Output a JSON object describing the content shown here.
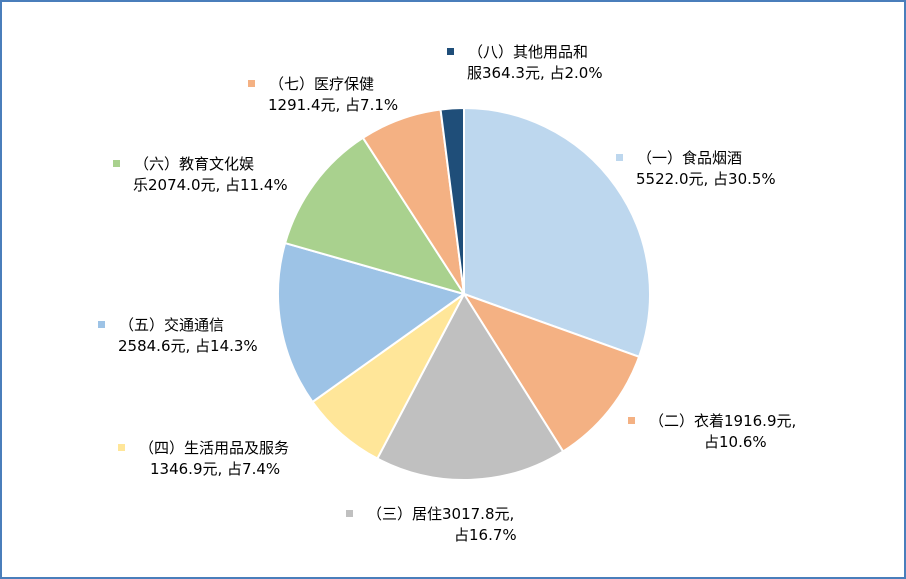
{
  "chart_data": {
    "type": "pie",
    "title": "",
    "slices": [
      {
        "label_line1": "（一）食品烟酒",
        "label_line2": "5522.0元, 占30.5%",
        "value": 5522.0,
        "percent": 30.5,
        "color": "#bdd7ee"
      },
      {
        "label_line1": "（二）衣着1916.9元,",
        "label_line2": "占10.6%",
        "value": 1916.9,
        "percent": 10.6,
        "color": "#f4b183"
      },
      {
        "label_line1": "（三）居住3017.8元,",
        "label_line2": "占16.7%",
        "value": 3017.8,
        "percent": 16.7,
        "color": "#c0c0c0"
      },
      {
        "label_line1": "（四）生活用品及服务",
        "label_line2": "1346.9元, 占7.4%",
        "value": 1346.9,
        "percent": 7.4,
        "color": "#ffe699"
      },
      {
        "label_line1": "（五）交通通信",
        "label_line2": "2584.6元, 占14.3%",
        "value": 2584.6,
        "percent": 14.3,
        "color": "#9dc3e6"
      },
      {
        "label_line1": "（六）教育文化娱",
        "label_line2": "乐2074.0元, 占11.4%",
        "value": 2074.0,
        "percent": 11.4,
        "color": "#a9d18e"
      },
      {
        "label_line1": "（七）医疗保健",
        "label_line2": "1291.4元, 占7.1%",
        "value": 1291.4,
        "percent": 7.1,
        "color": "#f4b183"
      },
      {
        "label_line1": "（八）其他用品和",
        "label_line2": "服364.3元, 占2.0%",
        "value": 364.3,
        "percent": 2.0,
        "color": "#1f4e79"
      }
    ]
  }
}
